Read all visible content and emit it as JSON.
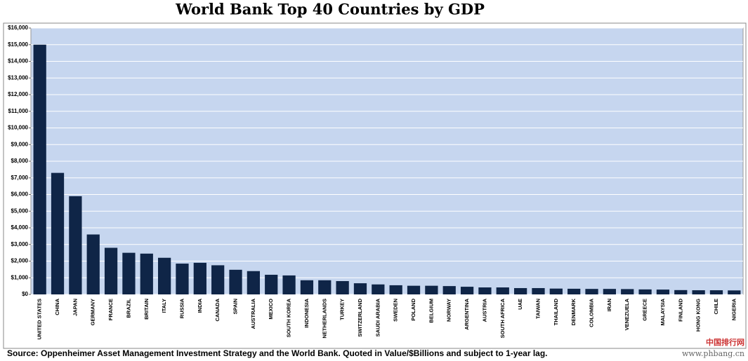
{
  "chart_data": {
    "type": "bar",
    "title": "World Bank Top 40 Countries by GDP",
    "source": "Source: Oppenheimer Asset Management Investment Strategy and the World Bank.  Quoted in Value/$Billions and subject to 1-year lag.",
    "watermark": "www.phbang.cn",
    "watermark_logo": "中国排行网",
    "categories": [
      "UNITED STATES",
      "CHINA",
      "JAPAN",
      "GERMANY",
      "FRANCE",
      "BRAZIL",
      "BRITAIN",
      "ITALY",
      "RUSSIA",
      "INDIA",
      "CANADA",
      "SPAIN",
      "AUSTRALIA",
      "MEXICO",
      "SOUTH KOREA",
      "INDONESIA",
      "NETHERLANDS",
      "TURKEY",
      "SWITZERLAND",
      "SAUDI ARABIA",
      "SWEDEN",
      "POLAND",
      "BELGIUM",
      "NORWAY",
      "ARGENTINA",
      "AUSTRIA",
      "SOUTH AFRICA",
      "UAE",
      "TAIWAN",
      "THAILAND",
      "DENMARK",
      "COLOMBIA",
      "IRAN",
      "VENEZUELA",
      "GREECE",
      "MALAYSIA",
      "FINLAND",
      "HONG KONG",
      "CHILE",
      "NIGERIA"
    ],
    "values": [
      15000,
      7300,
      5900,
      3600,
      2800,
      2500,
      2450,
      2200,
      1850,
      1900,
      1750,
      1480,
      1400,
      1180,
      1140,
      850,
      850,
      800,
      670,
      600,
      550,
      520,
      520,
      500,
      460,
      420,
      420,
      380,
      380,
      350,
      340,
      330,
      330,
      320,
      300,
      290,
      260,
      250,
      250,
      240
    ],
    "color": "#0f2547",
    "ylim": [
      0,
      16000
    ],
    "yticks": [
      {
        "value": 0,
        "label": "$0"
      },
      {
        "value": 1000,
        "label": "$1,000"
      },
      {
        "value": 2000,
        "label": "$2,000"
      },
      {
        "value": 3000,
        "label": "$3,000"
      },
      {
        "value": 4000,
        "label": "$4,000"
      },
      {
        "value": 5000,
        "label": "$5,000"
      },
      {
        "value": 6000,
        "label": "$6,000"
      },
      {
        "value": 7000,
        "label": "$7,000"
      },
      {
        "value": 8000,
        "label": "$8,000"
      },
      {
        "value": 9000,
        "label": "$9,000"
      },
      {
        "value": 10000,
        "label": "$10,000"
      },
      {
        "value": 11000,
        "label": "$11,000"
      },
      {
        "value": 12000,
        "label": "$12,000"
      },
      {
        "value": 13000,
        "label": "$13,000"
      },
      {
        "value": 14000,
        "label": "$14,000"
      },
      {
        "value": 15000,
        "label": "$15,000"
      },
      {
        "value": 16000,
        "label": "$16,000"
      }
    ],
    "grid": true
  }
}
